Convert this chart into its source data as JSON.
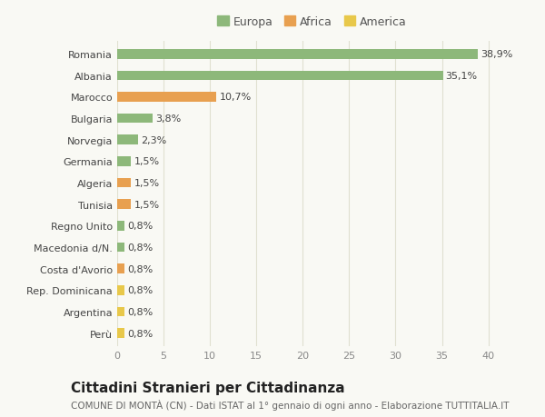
{
  "categories": [
    "Perù",
    "Argentina",
    "Rep. Dominicana",
    "Costa d'Avorio",
    "Macedonia d/N.",
    "Regno Unito",
    "Tunisia",
    "Algeria",
    "Germania",
    "Norvegia",
    "Bulgaria",
    "Marocco",
    "Albania",
    "Romania"
  ],
  "values": [
    0.8,
    0.8,
    0.8,
    0.8,
    0.8,
    0.8,
    1.5,
    1.5,
    1.5,
    2.3,
    3.8,
    10.7,
    35.1,
    38.9
  ],
  "colors": [
    "#e8c84a",
    "#e8c84a",
    "#e8c84a",
    "#e8a050",
    "#8db87a",
    "#8db87a",
    "#e8a050",
    "#e8a050",
    "#8db87a",
    "#8db87a",
    "#8db87a",
    "#e8a050",
    "#8db87a",
    "#8db87a"
  ],
  "labels": [
    "0,8%",
    "0,8%",
    "0,8%",
    "0,8%",
    "0,8%",
    "0,8%",
    "1,5%",
    "1,5%",
    "1,5%",
    "2,3%",
    "3,8%",
    "10,7%",
    "35,1%",
    "38,9%"
  ],
  "legend": [
    {
      "label": "Europa",
      "color": "#8db87a"
    },
    {
      "label": "Africa",
      "color": "#e8a050"
    },
    {
      "label": "America",
      "color": "#e8c84a"
    }
  ],
  "xlim": [
    0,
    42
  ],
  "xticks": [
    0,
    5,
    10,
    15,
    20,
    25,
    30,
    35,
    40
  ],
  "title": "Cittadini Stranieri per Cittadinanza",
  "subtitle": "COMUNE DI MONTÀ (CN) - Dati ISTAT al 1° gennaio di ogni anno - Elaborazione TUTTITALIA.IT",
  "background_color": "#f9f9f4",
  "grid_color": "#e0e0d0",
  "bar_height": 0.45,
  "label_fontsize": 8,
  "tick_fontsize": 8,
  "title_fontsize": 11,
  "subtitle_fontsize": 7.5
}
